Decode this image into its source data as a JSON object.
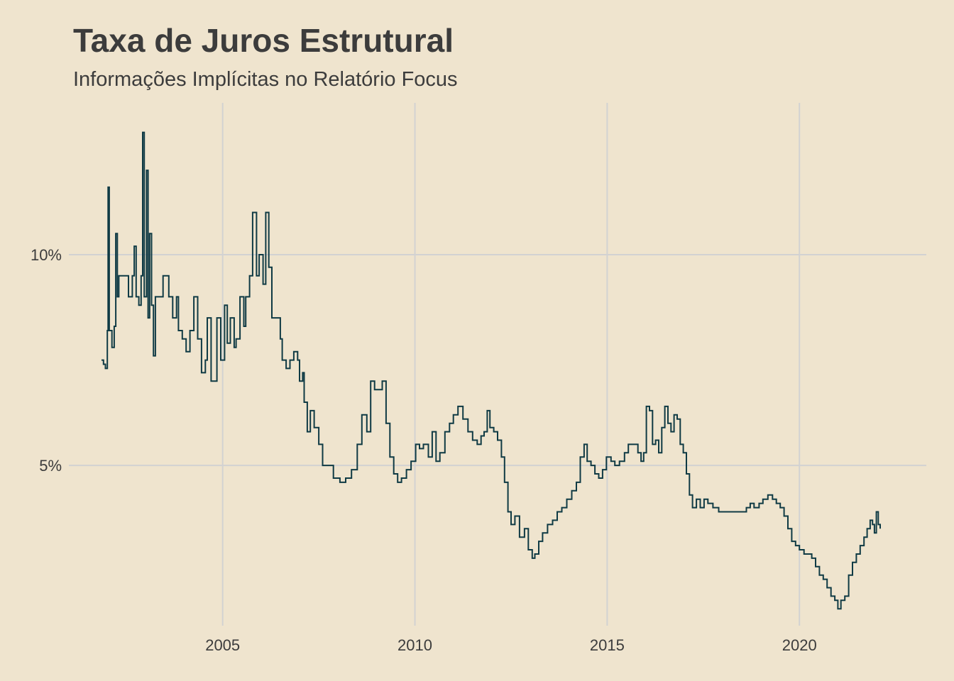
{
  "chart_data": {
    "type": "line",
    "title": "Taxa de Juros Estrutural",
    "subtitle": "Informações Implícitas no Relatório Focus",
    "xlabel": "",
    "ylabel": "",
    "xlim": [
      2001.0,
      2023.3
    ],
    "ylim": [
      1.2,
      13.6
    ],
    "x_ticks": [
      2005,
      2010,
      2015,
      2020
    ],
    "x_tick_labels": [
      "2005",
      "2010",
      "2015",
      "2020"
    ],
    "y_ticks": [
      5,
      10
    ],
    "y_tick_labels": [
      "5%",
      "10%"
    ],
    "grid": true,
    "line_color": "#0f3a44",
    "series": [
      {
        "values": [
          [
            2001.85,
            7.5
          ],
          [
            2001.9,
            7.4
          ],
          [
            2001.95,
            7.3
          ],
          [
            2002.0,
            8.2
          ],
          [
            2002.02,
            11.6
          ],
          [
            2002.05,
            8.2
          ],
          [
            2002.12,
            7.8
          ],
          [
            2002.18,
            8.3
          ],
          [
            2002.22,
            10.5
          ],
          [
            2002.26,
            9.0
          ],
          [
            2002.3,
            9.5
          ],
          [
            2002.45,
            9.5
          ],
          [
            2002.55,
            9.0
          ],
          [
            2002.65,
            9.5
          ],
          [
            2002.7,
            10.2
          ],
          [
            2002.75,
            9.0
          ],
          [
            2002.82,
            8.8
          ],
          [
            2002.88,
            9.5
          ],
          [
            2002.92,
            12.9
          ],
          [
            2002.96,
            9.0
          ],
          [
            2003.02,
            12.0
          ],
          [
            2003.06,
            8.5
          ],
          [
            2003.1,
            10.5
          ],
          [
            2003.15,
            8.8
          ],
          [
            2003.2,
            7.6
          ],
          [
            2003.25,
            9.0
          ],
          [
            2003.4,
            9.0
          ],
          [
            2003.45,
            9.5
          ],
          [
            2003.55,
            9.5
          ],
          [
            2003.6,
            9.0
          ],
          [
            2003.7,
            8.5
          ],
          [
            2003.8,
            9.0
          ],
          [
            2003.85,
            8.2
          ],
          [
            2003.95,
            8.0
          ],
          [
            2004.05,
            7.7
          ],
          [
            2004.15,
            8.2
          ],
          [
            2004.25,
            9.0
          ],
          [
            2004.35,
            8.0
          ],
          [
            2004.45,
            7.2
          ],
          [
            2004.55,
            7.5
          ],
          [
            2004.6,
            8.5
          ],
          [
            2004.7,
            7.0
          ],
          [
            2004.85,
            8.5
          ],
          [
            2004.95,
            7.5
          ],
          [
            2005.05,
            8.8
          ],
          [
            2005.12,
            7.9
          ],
          [
            2005.2,
            8.5
          ],
          [
            2005.3,
            7.8
          ],
          [
            2005.35,
            8.0
          ],
          [
            2005.45,
            9.0
          ],
          [
            2005.55,
            8.3
          ],
          [
            2005.6,
            9.0
          ],
          [
            2005.7,
            9.5
          ],
          [
            2005.78,
            11.0
          ],
          [
            2005.88,
            9.5
          ],
          [
            2005.95,
            10.0
          ],
          [
            2006.05,
            9.3
          ],
          [
            2006.12,
            11.0
          ],
          [
            2006.2,
            9.7
          ],
          [
            2006.28,
            8.5
          ],
          [
            2006.4,
            8.5
          ],
          [
            2006.5,
            8.0
          ],
          [
            2006.55,
            7.5
          ],
          [
            2006.65,
            7.3
          ],
          [
            2006.75,
            7.5
          ],
          [
            2006.85,
            7.7
          ],
          [
            2006.95,
            7.5
          ],
          [
            2007.0,
            7.0
          ],
          [
            2007.08,
            7.2
          ],
          [
            2007.12,
            6.5
          ],
          [
            2007.2,
            5.8
          ],
          [
            2007.28,
            6.3
          ],
          [
            2007.38,
            5.9
          ],
          [
            2007.5,
            5.5
          ],
          [
            2007.6,
            5.0
          ],
          [
            2007.75,
            5.0
          ],
          [
            2007.88,
            4.7
          ],
          [
            2008.05,
            4.6
          ],
          [
            2008.2,
            4.7
          ],
          [
            2008.35,
            4.9
          ],
          [
            2008.5,
            5.5
          ],
          [
            2008.62,
            6.2
          ],
          [
            2008.75,
            5.8
          ],
          [
            2008.85,
            7.0
          ],
          [
            2008.95,
            6.8
          ],
          [
            2009.05,
            6.8
          ],
          [
            2009.15,
            7.0
          ],
          [
            2009.25,
            6.0
          ],
          [
            2009.35,
            5.2
          ],
          [
            2009.45,
            4.8
          ],
          [
            2009.55,
            4.6
          ],
          [
            2009.65,
            4.7
          ],
          [
            2009.78,
            4.9
          ],
          [
            2009.9,
            5.1
          ],
          [
            2010.02,
            5.5
          ],
          [
            2010.12,
            5.4
          ],
          [
            2010.22,
            5.5
          ],
          [
            2010.35,
            5.2
          ],
          [
            2010.45,
            5.8
          ],
          [
            2010.55,
            5.1
          ],
          [
            2010.65,
            5.3
          ],
          [
            2010.78,
            5.8
          ],
          [
            2010.9,
            6.0
          ],
          [
            2011.0,
            6.2
          ],
          [
            2011.12,
            6.4
          ],
          [
            2011.25,
            6.1
          ],
          [
            2011.38,
            5.8
          ],
          [
            2011.5,
            5.6
          ],
          [
            2011.62,
            5.5
          ],
          [
            2011.72,
            5.7
          ],
          [
            2011.8,
            5.8
          ],
          [
            2011.88,
            6.3
          ],
          [
            2011.95,
            5.9
          ],
          [
            2012.05,
            5.8
          ],
          [
            2012.15,
            5.6
          ],
          [
            2012.25,
            5.2
          ],
          [
            2012.33,
            4.6
          ],
          [
            2012.42,
            3.9
          ],
          [
            2012.5,
            3.6
          ],
          [
            2012.6,
            3.8
          ],
          [
            2012.72,
            3.3
          ],
          [
            2012.85,
            3.5
          ],
          [
            2012.95,
            3.0
          ],
          [
            2013.05,
            2.8
          ],
          [
            2013.12,
            2.9
          ],
          [
            2013.22,
            3.2
          ],
          [
            2013.32,
            3.4
          ],
          [
            2013.45,
            3.6
          ],
          [
            2013.58,
            3.7
          ],
          [
            2013.7,
            3.9
          ],
          [
            2013.82,
            4.0
          ],
          [
            2013.95,
            4.2
          ],
          [
            2014.08,
            4.4
          ],
          [
            2014.2,
            4.6
          ],
          [
            2014.3,
            5.2
          ],
          [
            2014.4,
            5.5
          ],
          [
            2014.48,
            5.1
          ],
          [
            2014.58,
            5.0
          ],
          [
            2014.68,
            4.8
          ],
          [
            2014.78,
            4.7
          ],
          [
            2014.88,
            4.9
          ],
          [
            2014.98,
            5.2
          ],
          [
            2015.1,
            5.1
          ],
          [
            2015.2,
            5.0
          ],
          [
            2015.32,
            5.1
          ],
          [
            2015.45,
            5.3
          ],
          [
            2015.55,
            5.5
          ],
          [
            2015.68,
            5.5
          ],
          [
            2015.8,
            5.3
          ],
          [
            2015.88,
            5.1
          ],
          [
            2015.95,
            5.3
          ],
          [
            2016.02,
            6.4
          ],
          [
            2016.1,
            6.3
          ],
          [
            2016.18,
            5.5
          ],
          [
            2016.26,
            5.6
          ],
          [
            2016.34,
            5.3
          ],
          [
            2016.42,
            5.9
          ],
          [
            2016.5,
            6.4
          ],
          [
            2016.58,
            6.0
          ],
          [
            2016.66,
            5.8
          ],
          [
            2016.74,
            6.2
          ],
          [
            2016.82,
            6.1
          ],
          [
            2016.9,
            5.5
          ],
          [
            2016.98,
            5.3
          ],
          [
            2017.06,
            4.8
          ],
          [
            2017.14,
            4.3
          ],
          [
            2017.22,
            4.0
          ],
          [
            2017.32,
            4.2
          ],
          [
            2017.42,
            4.0
          ],
          [
            2017.52,
            4.2
          ],
          [
            2017.62,
            4.1
          ],
          [
            2017.75,
            4.0
          ],
          [
            2017.9,
            3.9
          ],
          [
            2018.05,
            3.9
          ],
          [
            2018.2,
            3.9
          ],
          [
            2018.35,
            3.9
          ],
          [
            2018.5,
            3.9
          ],
          [
            2018.62,
            4.0
          ],
          [
            2018.72,
            4.1
          ],
          [
            2018.82,
            4.0
          ],
          [
            2018.95,
            4.1
          ],
          [
            2019.05,
            4.2
          ],
          [
            2019.18,
            4.3
          ],
          [
            2019.3,
            4.2
          ],
          [
            2019.4,
            4.1
          ],
          [
            2019.5,
            4.0
          ],
          [
            2019.6,
            3.8
          ],
          [
            2019.7,
            3.5
          ],
          [
            2019.8,
            3.2
          ],
          [
            2019.9,
            3.1
          ],
          [
            2020.0,
            3.0
          ],
          [
            2020.12,
            2.9
          ],
          [
            2020.22,
            2.9
          ],
          [
            2020.32,
            2.8
          ],
          [
            2020.42,
            2.6
          ],
          [
            2020.52,
            2.4
          ],
          [
            2020.62,
            2.3
          ],
          [
            2020.72,
            2.1
          ],
          [
            2020.82,
            1.9
          ],
          [
            2020.92,
            1.8
          ],
          [
            2021.0,
            1.6
          ],
          [
            2021.08,
            1.8
          ],
          [
            2021.18,
            1.9
          ],
          [
            2021.28,
            2.4
          ],
          [
            2021.38,
            2.7
          ],
          [
            2021.48,
            2.9
          ],
          [
            2021.58,
            3.1
          ],
          [
            2021.68,
            3.3
          ],
          [
            2021.76,
            3.5
          ],
          [
            2021.84,
            3.7
          ],
          [
            2021.9,
            3.6
          ],
          [
            2021.95,
            3.4
          ],
          [
            2022.0,
            3.9
          ],
          [
            2022.05,
            3.6
          ],
          [
            2022.1,
            3.5
          ]
        ]
      }
    ]
  }
}
